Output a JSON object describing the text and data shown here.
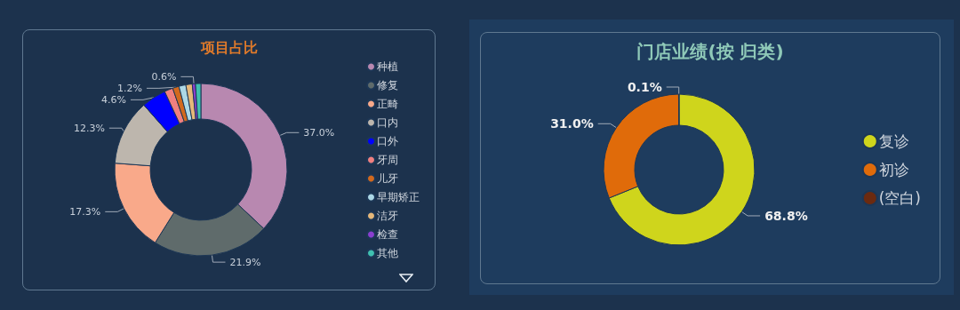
{
  "chart_data": [
    {
      "type": "donut",
      "title": "项目占比",
      "categories": [
        "种植",
        "修复",
        "正畸",
        "口内",
        "口外",
        "牙周",
        "儿牙",
        "早期矫正",
        "洁牙",
        "检查",
        "其他"
      ],
      "values": [
        37.0,
        21.9,
        17.3,
        12.3,
        4.6,
        1.6,
        1.2,
        1.3,
        1.2,
        0.6,
        1.0
      ],
      "value_labels": [
        "37.0%",
        "21.9%",
        "17.3%",
        "12.3%",
        "4.6%",
        null,
        "1.2%",
        null,
        null,
        "0.6%",
        null
      ],
      "colors": [
        "#b888b0",
        "#5f6b6b",
        "#f9a98a",
        "#bdb6ad",
        "#0000ff",
        "#f08080",
        "#d2691e",
        "#add8e6",
        "#e6b87a",
        "#8a3fcf",
        "#40c0b0"
      ],
      "legend": "right"
    },
    {
      "type": "donut",
      "title": "门店业绩(按 归类)",
      "categories": [
        "复诊",
        "初诊",
        "(空白)"
      ],
      "values": [
        68.8,
        31.0,
        0.1
      ],
      "value_labels": [
        "68.8%",
        "31.0%",
        "0.1%"
      ],
      "colors": [
        "#cfd51c",
        "#e06b0a",
        "#6b2a10"
      ],
      "legend": "right"
    }
  ]
}
